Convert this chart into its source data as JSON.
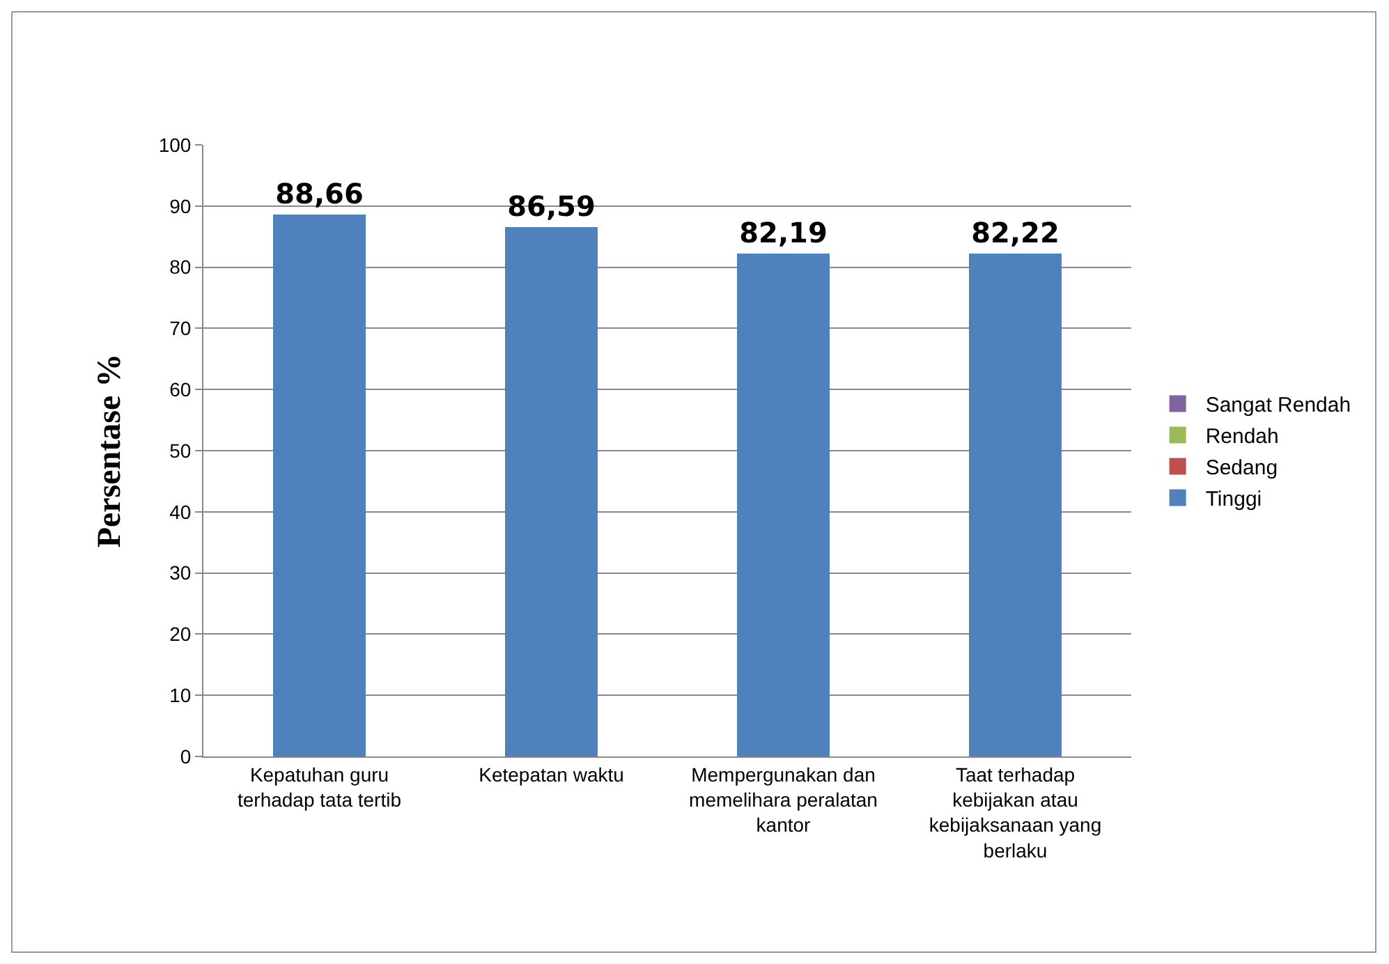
{
  "chart_data": {
    "type": "bar",
    "ylabel": "Persentase %",
    "stacked": true,
    "categories": [
      "Kepatuhan guru terhadap tata tertib",
      "Ketepatan waktu",
      "Mempergunakan dan memelihara peralatan kantor",
      "Taat terhadap kebijakan atau kebijaksanaan yang berlaku"
    ],
    "series": [
      {
        "name": "Tinggi",
        "color": "#4f81bd",
        "values": [
          88.66,
          86.59,
          82.19,
          82.22
        ],
        "value_labels": [
          "88,66",
          "86,59",
          "82,19",
          "82,22"
        ]
      },
      {
        "name": "Sedang",
        "color": "#c0504d",
        "values": [
          null,
          null,
          null,
          null
        ]
      },
      {
        "name": "Rendah",
        "color": "#9bbb59",
        "values": [
          null,
          null,
          null,
          null
        ]
      },
      {
        "name": "Sangat Rendah",
        "color": "#8064a2",
        "values": [
          null,
          null,
          null,
          null
        ]
      }
    ],
    "ylim": [
      0,
      100
    ],
    "yticks": [
      0,
      10,
      20,
      30,
      40,
      50,
      60,
      70,
      80,
      90,
      100
    ],
    "grid": "y",
    "legend": "right"
  }
}
